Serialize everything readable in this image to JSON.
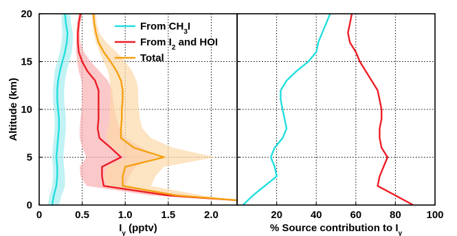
{
  "chart_data": [
    {
      "type": "line",
      "xlabel_main": "I",
      "xlabel_sub": "y",
      "xlabel_unit": " (pptv)",
      "ylabel": "Altitude (km)",
      "xlim": [
        0,
        2.3
      ],
      "ylim": [
        0,
        20
      ],
      "xticks": [
        0,
        0.5,
        1.0,
        1.5,
        2.0
      ],
      "xtick_labels": [
        "0",
        "0.5",
        "1.0",
        "1.5",
        "2.0"
      ],
      "yticks": [
        0,
        5,
        10,
        15,
        20
      ],
      "ytick_labels": [
        "0",
        "5",
        "10",
        "15",
        "20"
      ],
      "grid": true,
      "legend_position": "top-right",
      "series": [
        {
          "name": "From CH3I",
          "legend_parts": [
            [
              "From CH",
              "normal"
            ],
            [
              "3",
              "sub"
            ],
            [
              "I",
              "normal"
            ]
          ],
          "color": "#22dede",
          "band_color": "#a8ecee",
          "x": [
            0.15,
            0.17,
            0.2,
            0.21,
            0.21,
            0.2,
            0.21,
            0.22,
            0.23,
            0.23,
            0.22,
            0.21,
            0.21,
            0.22,
            0.24,
            0.27,
            0.3,
            0.32,
            0.33,
            0.31,
            0.3
          ],
          "y": [
            0,
            1,
            2,
            3,
            4,
            5,
            6,
            7,
            8,
            9,
            10,
            11,
            12,
            13,
            14,
            15,
            16,
            17,
            18,
            19,
            20
          ],
          "lower": [
            0.1,
            0.12,
            0.15,
            0.16,
            0.16,
            0.15,
            0.16,
            0.17,
            0.18,
            0.18,
            0.17,
            0.16,
            0.16,
            0.17,
            0.18,
            0.21,
            0.24,
            0.26,
            0.27,
            0.26,
            0.26
          ],
          "upper": [
            0.23,
            0.26,
            0.3,
            0.3,
            0.29,
            0.28,
            0.29,
            0.3,
            0.31,
            0.31,
            0.3,
            0.29,
            0.29,
            0.3,
            0.32,
            0.35,
            0.38,
            0.39,
            0.39,
            0.37,
            0.36
          ]
        },
        {
          "name": "From I2 and HOI",
          "legend_parts": [
            [
              "From I",
              "normal"
            ],
            [
              "2",
              "sub"
            ],
            [
              " and HOI",
              "normal"
            ]
          ],
          "color": "#ee1c24",
          "band_color": "#f9b0b4",
          "x": [
            2.3,
            1.5,
            0.75,
            0.73,
            0.73,
            0.95,
            0.83,
            0.7,
            0.68,
            0.69,
            0.69,
            0.69,
            0.69,
            0.65,
            0.56,
            0.5,
            0.46,
            0.45,
            0.45,
            0.46,
            0.48
          ],
          "y": [
            0.5,
            1,
            2,
            3,
            4,
            5,
            6,
            7,
            8,
            9,
            10,
            11,
            12,
            13,
            14,
            15,
            16,
            17,
            18,
            19,
            20
          ],
          "lower": [
            2.3,
            1.3,
            0.55,
            0.48,
            0.47,
            0.55,
            0.5,
            0.47,
            0.47,
            0.48,
            0.49,
            0.5,
            0.5,
            0.49,
            0.46,
            0.44,
            0.43,
            0.43,
            0.43,
            0.44,
            0.46
          ],
          "upper": [
            2.3,
            1.7,
            1.0,
            1.05,
            1.12,
            1.35,
            1.2,
            1.0,
            0.94,
            0.9,
            0.88,
            0.86,
            0.85,
            0.8,
            0.7,
            0.6,
            0.52,
            0.48,
            0.47,
            0.48,
            0.5
          ]
        },
        {
          "name": "Total",
          "legend_parts": [
            [
              "Total",
              "normal"
            ]
          ],
          "color": "#f5a00f",
          "band_color": "#fcd9a8",
          "x": [
            2.3,
            1.6,
            0.97,
            0.97,
            1.0,
            1.45,
            1.1,
            0.95,
            0.95,
            0.96,
            0.96,
            0.97,
            0.97,
            0.95,
            0.9,
            0.83,
            0.75,
            0.69,
            0.66,
            0.64,
            0.63
          ],
          "y": [
            0.5,
            1,
            2,
            3,
            4,
            5,
            6,
            7,
            8,
            9,
            10,
            11,
            12,
            13,
            14,
            15,
            16,
            17,
            18,
            19,
            20
          ],
          "lower": [
            2.3,
            1.4,
            0.78,
            0.75,
            0.78,
            1.0,
            0.85,
            0.78,
            0.8,
            0.82,
            0.82,
            0.83,
            0.83,
            0.82,
            0.8,
            0.75,
            0.7,
            0.66,
            0.63,
            0.62,
            0.61
          ],
          "upper": [
            2.3,
            1.9,
            1.3,
            1.35,
            1.45,
            2.05,
            1.55,
            1.3,
            1.2,
            1.17,
            1.16,
            1.15,
            1.15,
            1.13,
            1.08,
            1.0,
            0.9,
            0.78,
            0.7,
            0.67,
            0.66
          ]
        }
      ]
    },
    {
      "type": "line",
      "xlabel_main": "% Source contribution to I",
      "xlabel_sub": "y",
      "xlabel_unit": "",
      "xlim": [
        0,
        100
      ],
      "ylim": [
        0,
        20
      ],
      "xticks": [
        0,
        20,
        40,
        60,
        80,
        100
      ],
      "xtick_labels": [
        "",
        "20",
        "40",
        "60",
        "80",
        "100"
      ],
      "yticks": [
        0,
        5,
        10,
        15,
        20
      ],
      "grid": true,
      "series": [
        {
          "name": "From CH3I",
          "color": "#22dede",
          "x": [
            3,
            8,
            14,
            20,
            19,
            17,
            19,
            23,
            25,
            24,
            23,
            22,
            22,
            25,
            30,
            36,
            40,
            41,
            43,
            45,
            47
          ],
          "y": [
            0,
            1,
            2,
            3,
            4,
            5,
            6,
            7,
            8,
            9,
            10,
            11,
            12,
            13,
            14,
            15,
            16,
            17,
            18,
            19,
            20
          ]
        },
        {
          "name": "From I2 and HOI",
          "color": "#ee1c24",
          "x": [
            89,
            80,
            71,
            72,
            74,
            76,
            73,
            72,
            72,
            73,
            73,
            72,
            71,
            68,
            65,
            62,
            60,
            57,
            56,
            57,
            58
          ],
          "y": [
            0,
            1,
            2,
            3,
            4,
            5,
            6,
            7,
            8,
            9,
            10,
            11,
            12,
            13,
            14,
            15,
            16,
            17,
            18,
            19,
            20
          ]
        }
      ]
    }
  ]
}
